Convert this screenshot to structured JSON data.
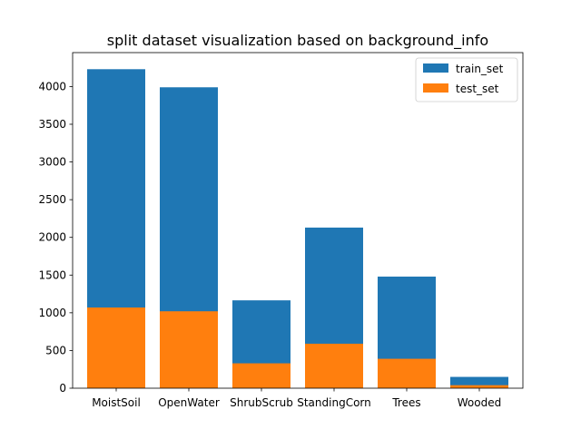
{
  "chart_data": {
    "type": "bar",
    "stacked": false,
    "title": "split dataset visualization based on background_info",
    "xlabel": "",
    "ylabel": "",
    "categories": [
      "MoistSoil",
      "OpenWater",
      "ShrubScrub",
      "StandingCorn",
      "Trees",
      "Wooded"
    ],
    "series": [
      {
        "name": "train_set",
        "color": "#1f77b4",
        "values": [
          4230,
          3990,
          1165,
          2130,
          1480,
          150
        ]
      },
      {
        "name": "test_set",
        "color": "#ff7f0e",
        "values": [
          1070,
          1020,
          330,
          590,
          390,
          40
        ]
      }
    ],
    "ylim": [
      0,
      4450
    ],
    "yticks": [
      0,
      500,
      1000,
      1500,
      2000,
      2500,
      3000,
      3500,
      4000
    ],
    "legend_position": "top-right",
    "grid": false
  }
}
